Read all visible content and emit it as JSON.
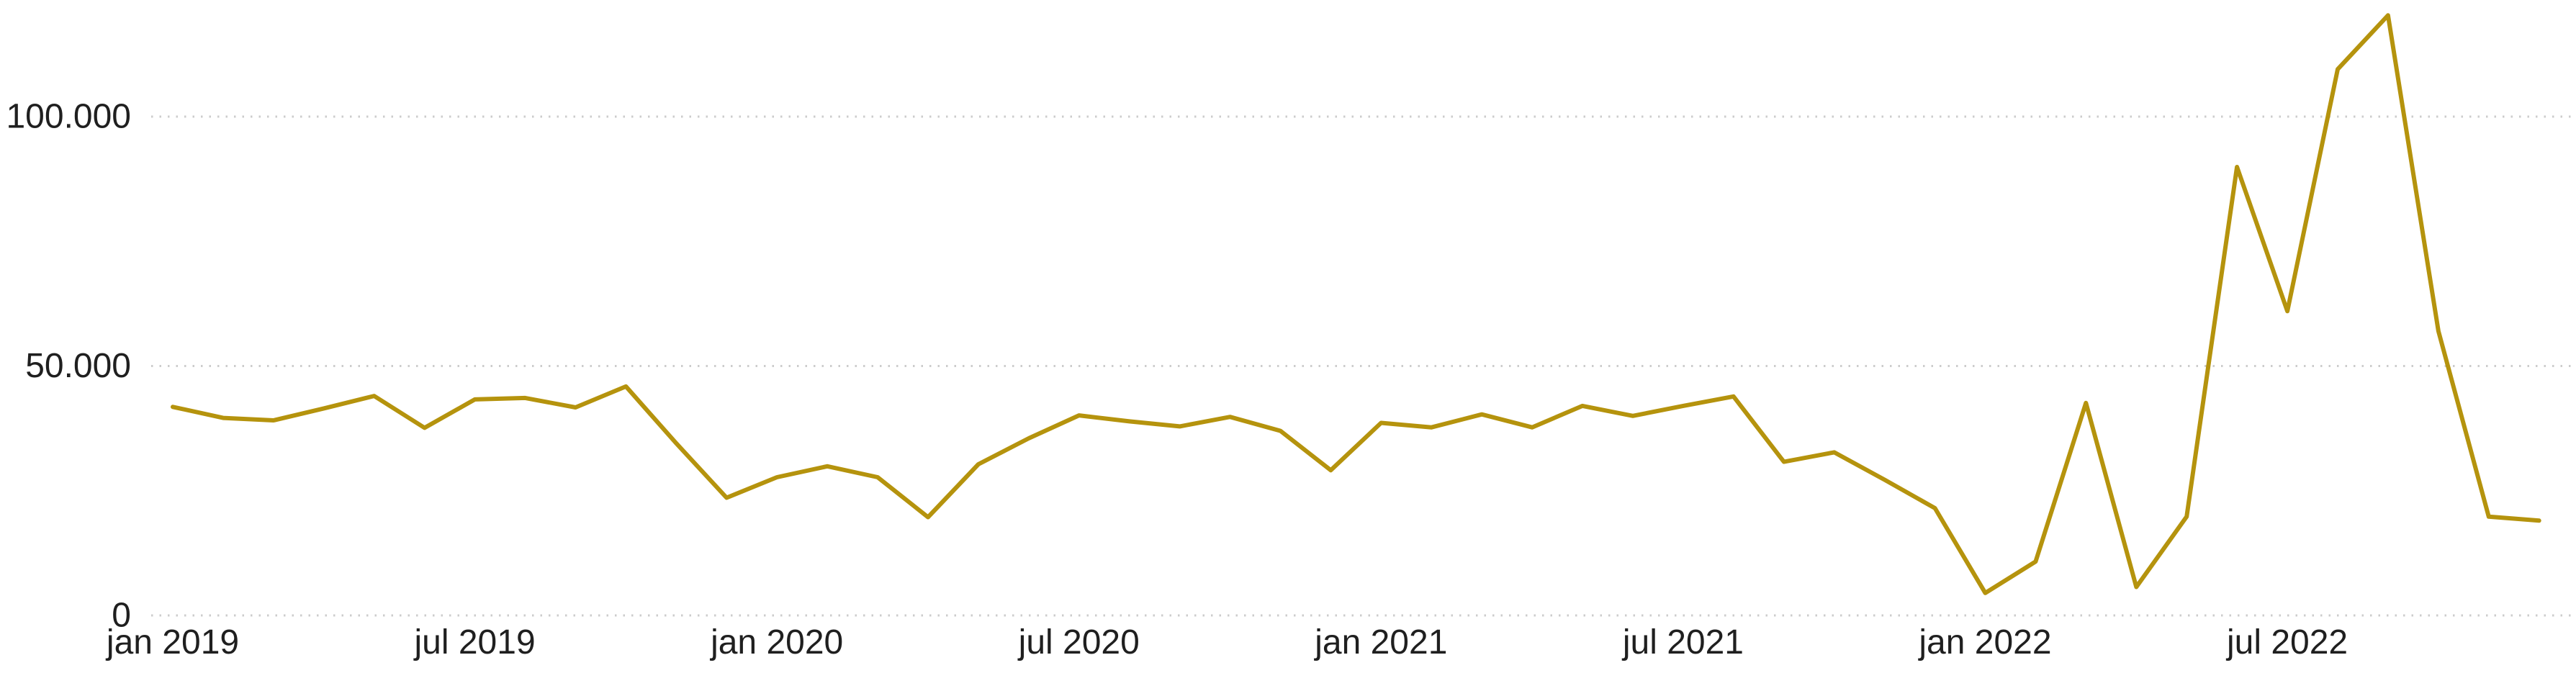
{
  "chart_data": {
    "type": "line",
    "title": "",
    "xlabel": "",
    "ylabel": "",
    "grid": "horizontal-dotted",
    "legend": "none",
    "ylim": [
      0,
      123000
    ],
    "x": [
      "2019-01",
      "2019-02",
      "2019-03",
      "2019-04",
      "2019-05",
      "2019-06",
      "2019-07",
      "2019-08",
      "2019-09",
      "2019-10",
      "2019-11",
      "2019-12",
      "2020-01",
      "2020-02",
      "2020-03",
      "2020-04",
      "2020-05",
      "2020-06",
      "2020-07",
      "2020-08",
      "2020-09",
      "2020-10",
      "2020-11",
      "2020-12",
      "2021-01",
      "2021-02",
      "2021-03",
      "2021-04",
      "2021-05",
      "2021-06",
      "2021-07",
      "2021-08",
      "2021-09",
      "2021-10",
      "2021-11",
      "2021-12",
      "2022-01",
      "2022-02",
      "2022-03",
      "2022-04",
      "2022-05",
      "2022-06",
      "2022-07",
      "2022-08",
      "2022-09",
      "2022-10",
      "2022-11",
      "2022-12"
    ],
    "series": [
      {
        "name": "value",
        "color": "#B5930D",
        "values": [
          41800,
          39600,
          39100,
          41500,
          44000,
          37600,
          43300,
          43600,
          41700,
          45900,
          34500,
          23600,
          27700,
          29900,
          27700,
          19700,
          30300,
          35500,
          40100,
          38900,
          37900,
          39800,
          37000,
          29100,
          38600,
          37700,
          40300,
          37700,
          42000,
          40000,
          42000,
          43900,
          30800,
          32700,
          27200,
          21500,
          4500,
          10800,
          42600,
          5700,
          19800,
          89900,
          61000,
          109500,
          120300,
          57000,
          19800,
          19000
        ]
      }
    ],
    "yticks": [
      {
        "value": 0,
        "label": "0"
      },
      {
        "value": 50000,
        "label": "50.000"
      },
      {
        "value": 100000,
        "label": "100.000"
      }
    ],
    "xticks": [
      {
        "index": 0,
        "label": "jan 2019"
      },
      {
        "index": 6,
        "label": "jul 2019"
      },
      {
        "index": 12,
        "label": "jan 2020"
      },
      {
        "index": 18,
        "label": "jul 2020"
      },
      {
        "index": 24,
        "label": "jan 2021"
      },
      {
        "index": 30,
        "label": "jul 2021"
      },
      {
        "index": 36,
        "label": "jan 2022"
      },
      {
        "index": 42,
        "label": "jul 2022"
      }
    ],
    "colors": {
      "line": "#B5930D",
      "gridline": "#cccccc",
      "tick_text": "#1f1f1f",
      "background": "#ffffff"
    }
  }
}
